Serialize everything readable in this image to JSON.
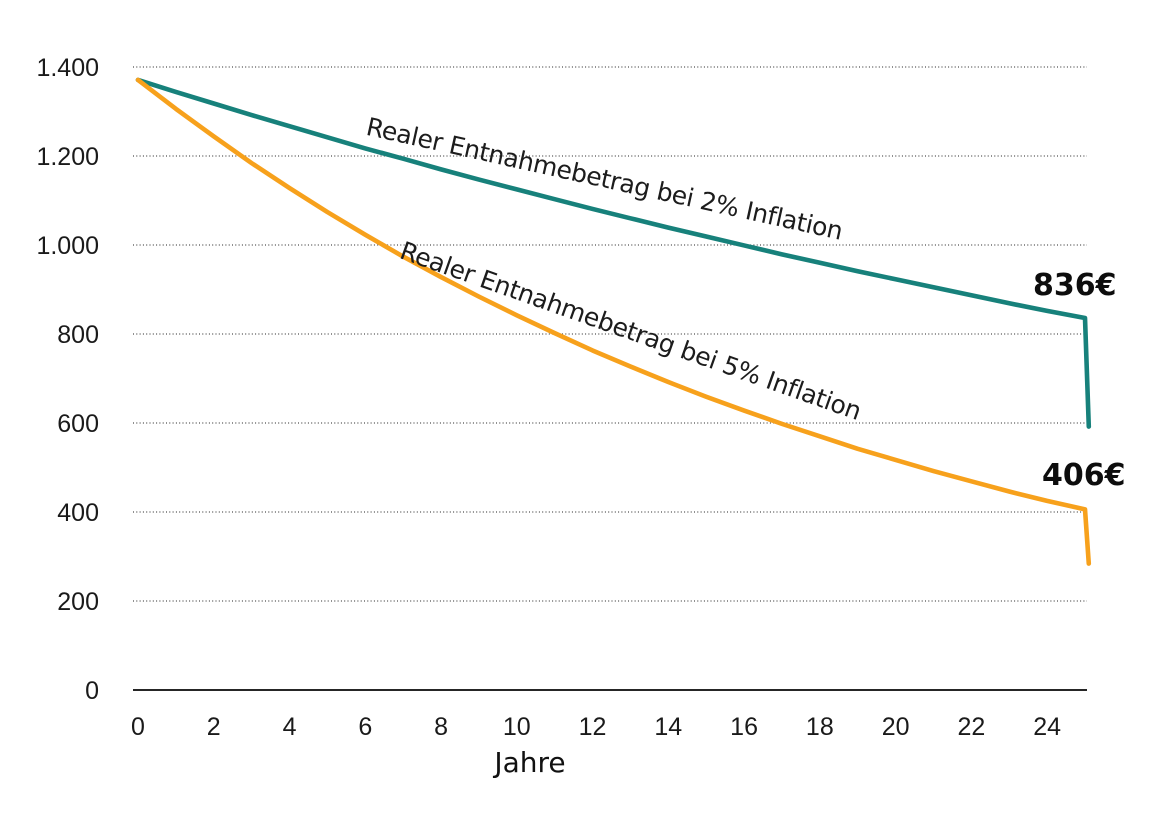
{
  "colors": {
    "series_2pct": "#17817B",
    "series_5pct": "#F7A11C",
    "gridline": "#4d4d4d",
    "axis": "#262626",
    "tick_text": "#1a1a1a"
  },
  "chart_data": {
    "type": "line",
    "title": "",
    "xlabel": "Jahre",
    "ylabel": "",
    "xlim": [
      0,
      25.1
    ],
    "ylim": [
      0,
      1400
    ],
    "x_ticks": [
      0,
      2,
      4,
      6,
      8,
      10,
      12,
      14,
      16,
      18,
      20,
      22,
      24
    ],
    "y_ticks": [
      {
        "value": 1400,
        "label": "1.400"
      },
      {
        "value": 1200,
        "label": "1.200"
      },
      {
        "value": 1000,
        "label": "1.000"
      },
      {
        "value": 800,
        "label": "800"
      },
      {
        "value": 600,
        "label": "600"
      },
      {
        "value": 400,
        "label": "400"
      },
      {
        "value": 200,
        "label": "200"
      },
      {
        "value": 0,
        "label": "0"
      }
    ],
    "grid": "horizontal-dotted",
    "legend_position": "inline-labels-on-lines",
    "series": [
      {
        "name": "Realer Entnahmebetrag bei 2% Inflation",
        "color": "#17817B",
        "end_label": "836€",
        "x": [
          0,
          1,
          2,
          3,
          4,
          5,
          6,
          7,
          8,
          9,
          10,
          11,
          12,
          13,
          14,
          15,
          16,
          17,
          18,
          19,
          20,
          21,
          22,
          23,
          24,
          25,
          25.1
        ],
        "values": [
          1371,
          1344,
          1318,
          1292,
          1267,
          1242,
          1217,
          1194,
          1170,
          1147,
          1125,
          1103,
          1081,
          1060,
          1039,
          1019,
          999,
          979,
          960,
          941,
          923,
          905,
          887,
          869,
          852,
          836,
          592
        ]
      },
      {
        "name": "Realer Entnahmebetrag bei 5% Inflation",
        "color": "#F7A11C",
        "end_label": "406€",
        "x": [
          0,
          1,
          2,
          3,
          4,
          5,
          6,
          7,
          8,
          9,
          10,
          11,
          12,
          13,
          14,
          15,
          16,
          17,
          18,
          19,
          20,
          21,
          22,
          23,
          24,
          25,
          25.1
        ],
        "values": [
          1371,
          1306,
          1244,
          1184,
          1128,
          1074,
          1023,
          974,
          928,
          884,
          842,
          802,
          763,
          727,
          692,
          659,
          628,
          598,
          570,
          542,
          517,
          492,
          469,
          446,
          425,
          406,
          284
        ]
      }
    ]
  }
}
